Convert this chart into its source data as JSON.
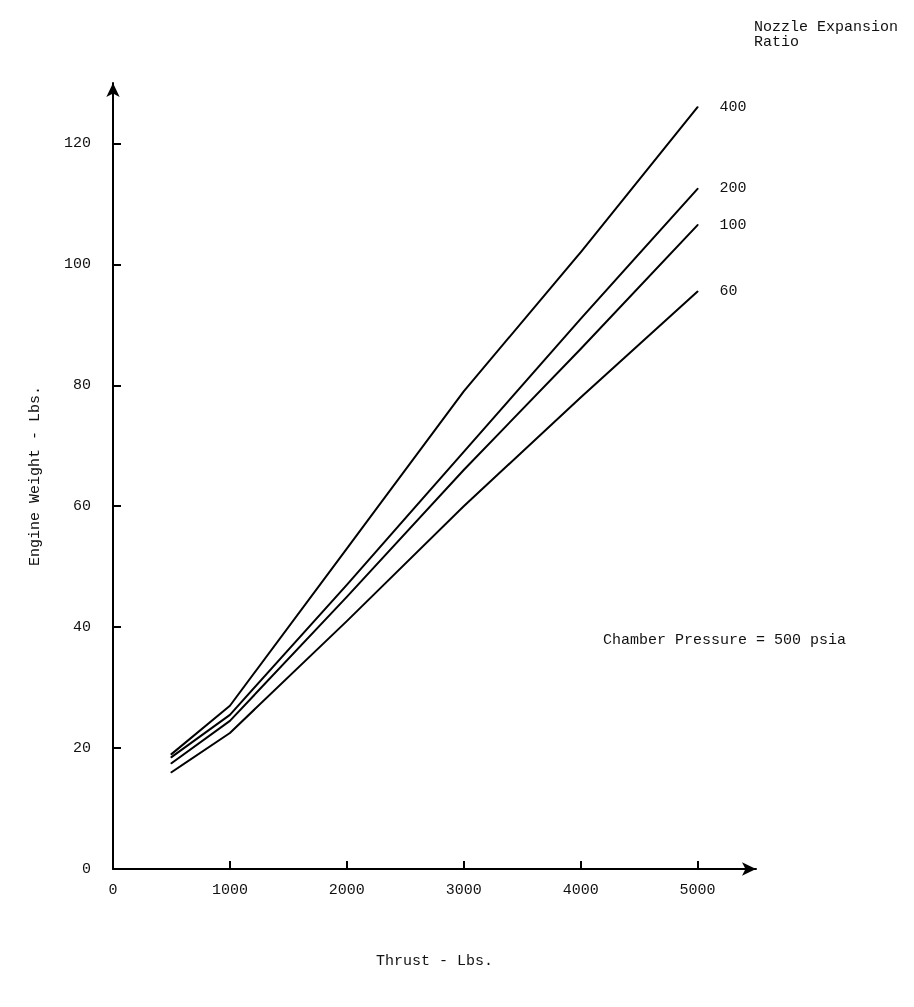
{
  "chart_data": {
    "type": "line",
    "xlabel": "Thrust - Lbs.",
    "ylabel": "Engine Weight - Lbs.",
    "legend_title": "Nozzle Expansion\nRatio",
    "x": [
      500,
      1000,
      2000,
      3000,
      4000,
      5000
    ],
    "series": [
      {
        "name": "400",
        "color": "#000000",
        "values": [
          19,
          27,
          53,
          79,
          102,
          126
        ]
      },
      {
        "name": "200",
        "color": "#000000",
        "values": [
          18.5,
          25.5,
          47,
          69,
          91,
          112.5
        ]
      },
      {
        "name": "100",
        "color": "#000000",
        "values": [
          17.5,
          24.5,
          45,
          66,
          86,
          106.5
        ]
      },
      {
        "name": "60",
        "color": "#000000",
        "values": [
          16,
          22.5,
          41,
          60,
          78,
          95.5
        ]
      }
    ],
    "annotations": [
      "Chamber Pressure = 500 psia"
    ],
    "xlim": [
      0,
      5500
    ],
    "xticks": [
      0,
      1000,
      2000,
      3000,
      4000,
      5000
    ],
    "ylim": [
      0,
      130
    ],
    "yticks": [
      0,
      20,
      40,
      60,
      80,
      100,
      120
    ],
    "grid": false,
    "legend": false,
    "marker": "none",
    "line_style": "solid"
  }
}
